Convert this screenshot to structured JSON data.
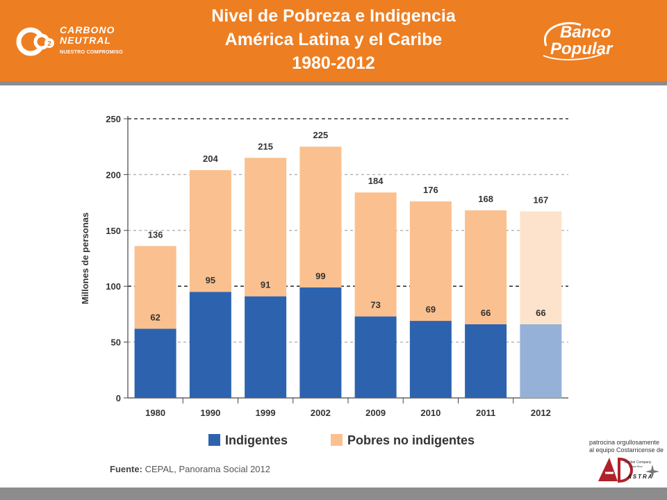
{
  "header": {
    "title_line1": "Nivel de Pobreza e Indigencia",
    "title_line2": "América Latina y el Caribe",
    "title_line3": "1980-2012",
    "left_logo": {
      "line1": "CARBONO",
      "line2": "NEUTRAL",
      "tagline": "NUESTRO COMPROMISO",
      "badge": "2"
    },
    "right_logo": {
      "line1": "Banco",
      "line2": "Popular"
    }
  },
  "chart_data": {
    "type": "bar",
    "stacked": true,
    "title": "",
    "ylabel": "Millones de personas",
    "xlabel": "",
    "ylim": [
      0,
      250
    ],
    "yticks": [
      "0",
      "50",
      "100",
      "150",
      "200",
      "250"
    ],
    "categories": [
      "1980",
      "1990",
      "1999",
      "2002",
      "2009",
      "2010",
      "2011",
      "2012"
    ],
    "series": [
      {
        "name": "Indigentes",
        "values": [
          62,
          95,
          91,
          99,
          73,
          69,
          66,
          66
        ],
        "color": "#2d63ae",
        "projected_color": "#95b1d8"
      },
      {
        "name": "Pobres no indigentes",
        "values": [
          74,
          109,
          124,
          126,
          111,
          107,
          102,
          101
        ],
        "color": "#fbc08f",
        "projected_color": "#fde3cc"
      }
    ],
    "total_labels": [
      "136",
      "204",
      "215",
      "225",
      "184",
      "176",
      "168",
      "167"
    ],
    "inner_labels": [
      "62",
      "95",
      "91",
      "99",
      "73",
      "69",
      "66",
      "66"
    ],
    "legend_position": "bottom"
  },
  "source": {
    "label": "Fuente:",
    "text": " CEPAL, Panorama Social 2012"
  },
  "sponsor": {
    "text_line1": "patrocina orgullosamente",
    "text_line2": "al equipo Costarricense de",
    "logo_text": "ASTRA",
    "logo_sub1": "Rocket Company",
    "logo_sub2": "Costa Rica"
  },
  "colors": {
    "header": "#ee7e22",
    "bar_line": "#8c8c8c"
  }
}
